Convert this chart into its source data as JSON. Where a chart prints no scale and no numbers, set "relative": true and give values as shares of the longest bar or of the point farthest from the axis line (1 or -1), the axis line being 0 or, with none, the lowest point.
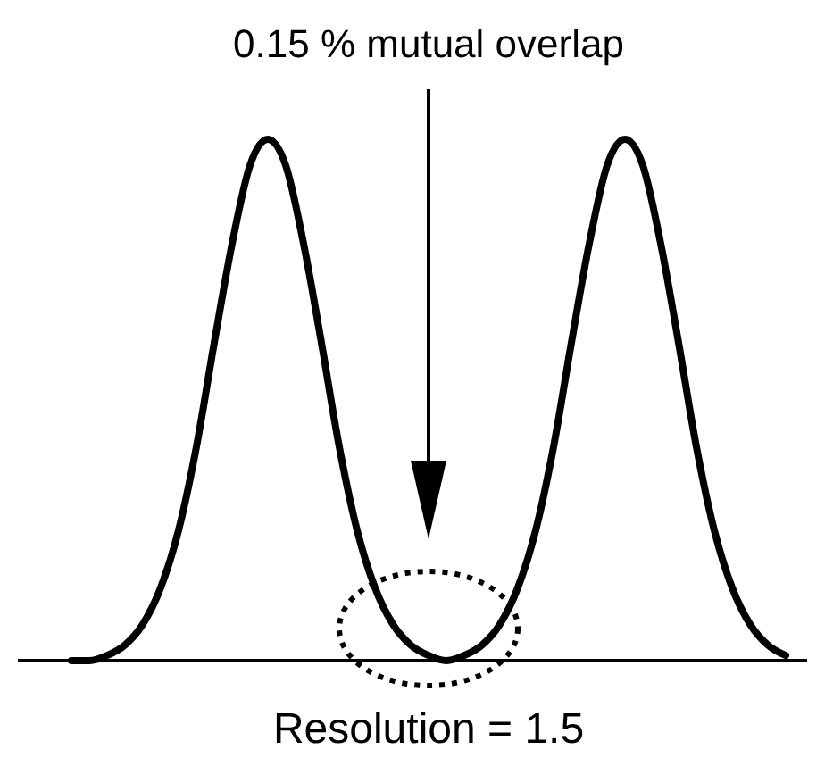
{
  "chart_data": {
    "type": "line",
    "relative": true,
    "color": "#000000",
    "categories": [
      null,
      null,
      null,
      null,
      null,
      null,
      null,
      null,
      null,
      null,
      null,
      null,
      null,
      null,
      null,
      null,
      null,
      null,
      null,
      null,
      null,
      null,
      null,
      null,
      null,
      null,
      null,
      null,
      null,
      null,
      null,
      null,
      null,
      null,
      null,
      null,
      null,
      null,
      null,
      null,
      null
    ],
    "values": [
      0.0,
      0.0,
      0.01,
      0.03,
      0.07,
      0.14,
      0.25,
      0.41,
      0.61,
      0.8,
      0.95,
      1,
      0.95,
      0.8,
      0.61,
      0.41,
      0.25,
      0.14,
      0.07,
      0.03,
      0.01,
      0.0,
      0.01,
      0.03,
      0.07,
      0.14,
      0.25,
      0.41,
      0.61,
      0.8,
      0.95,
      1,
      0.95,
      0.8,
      0.61,
      0.41,
      0.25,
      0.14,
      0.07,
      0.03,
      0.01
    ],
    "annotations": [
      "0.15 % mutual overlap",
      "Resolution = 1.5"
    ]
  }
}
